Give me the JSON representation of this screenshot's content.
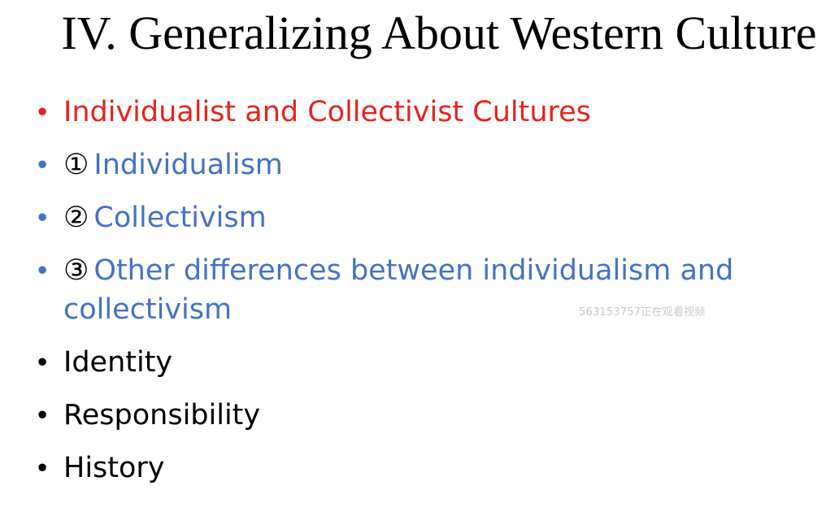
{
  "slide": {
    "title": "IV. Generalizing About Western Culture",
    "bullets": [
      {
        "marker": "•",
        "number": "",
        "text": "Individualist and Collectivist Cultures"
      },
      {
        "marker": "•",
        "number": "①",
        "text": "Individualism"
      },
      {
        "marker": "•",
        "number": "②",
        "text": "Collectivism"
      },
      {
        "marker": "•",
        "number": "③",
        "text": "Other differences between individualism and collectivism"
      },
      {
        "marker": "•",
        "number": "",
        "text": "Identity"
      },
      {
        "marker": "•",
        "number": "",
        "text": "Responsibility"
      },
      {
        "marker": "•",
        "number": "",
        "text": "History"
      }
    ],
    "watermark": "563153757正在观看视频"
  },
  "colors": {
    "title": "#000000",
    "highlight": "#e8231b",
    "sub": "#4472c4",
    "plain": "#000000",
    "background": "#ffffff"
  }
}
